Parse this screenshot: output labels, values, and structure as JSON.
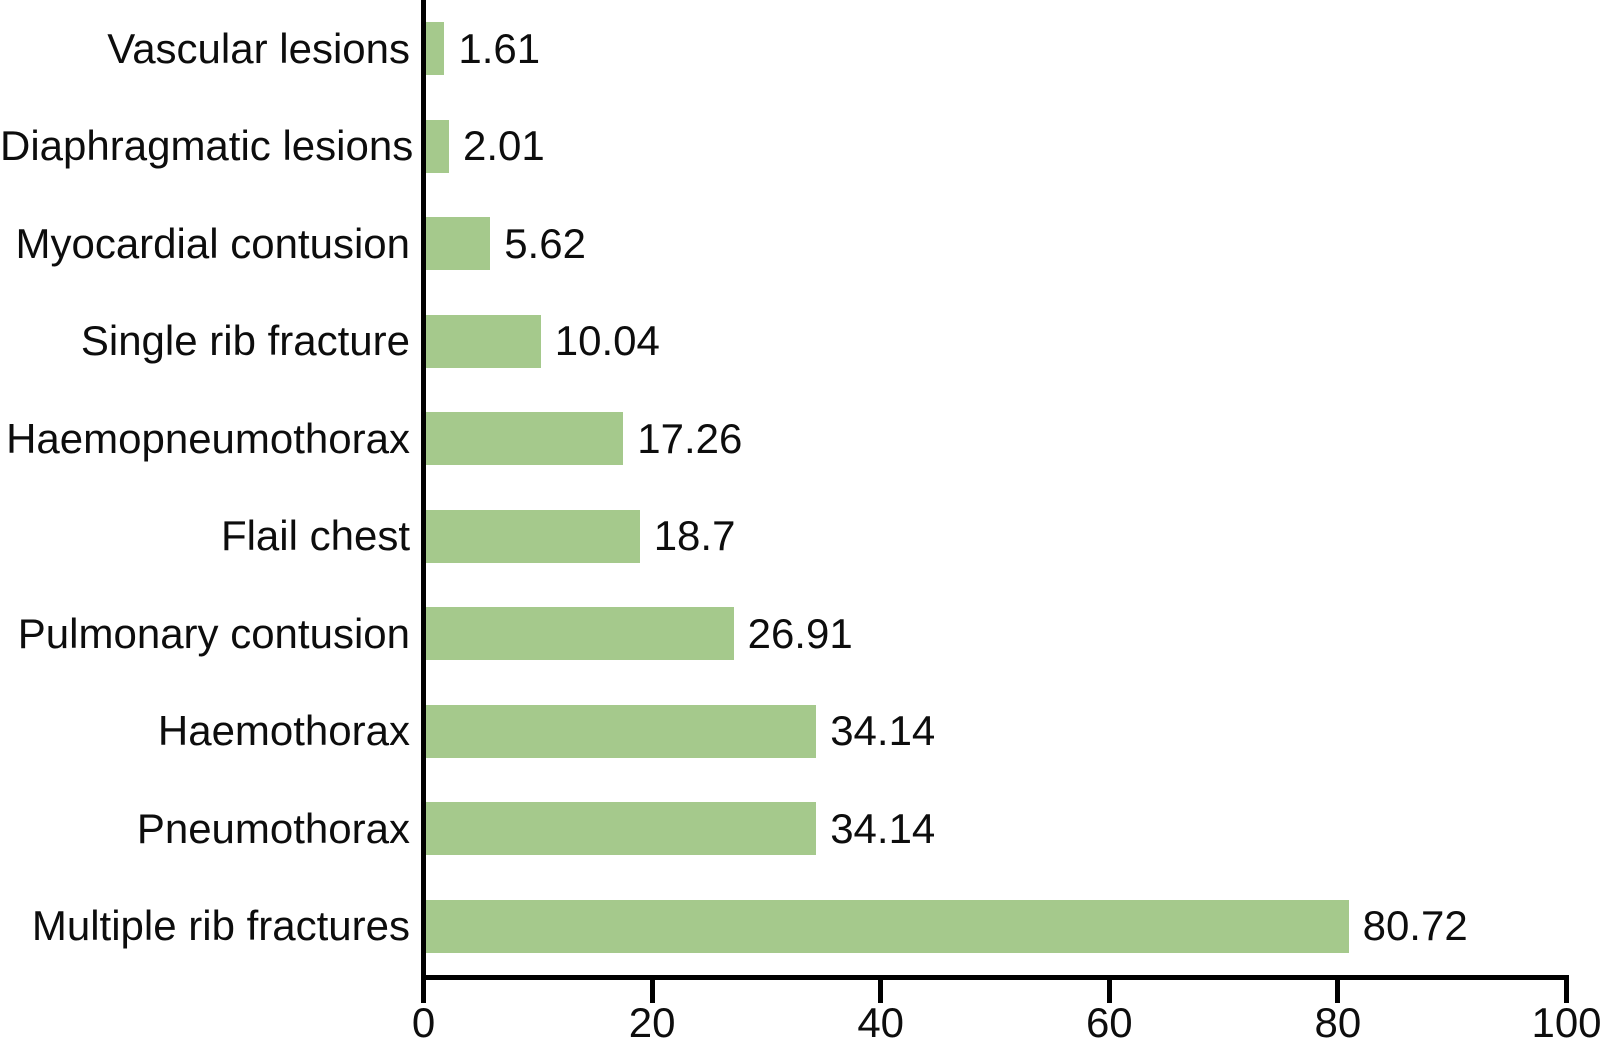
{
  "chart_data": {
    "type": "bar",
    "orientation": "horizontal",
    "title": "",
    "xlabel": "",
    "ylabel": "",
    "categories": [
      "Vascular lesions",
      "Diaphragmatic lesions",
      "Myocardial contusion",
      "Single rib fracture",
      "Haemopneumothorax",
      "Flail chest",
      "Pulmonary contusion",
      "Haemothorax",
      "Pneumothorax",
      "Multiple rib fractures"
    ],
    "values": [
      1.61,
      2.01,
      5.62,
      10.04,
      17.26,
      18.7,
      26.91,
      34.14,
      34.14,
      80.72
    ],
    "value_labels": [
      "1.61",
      "2.01",
      "5.62",
      "10.04",
      "17.26",
      "18.7",
      "26.91",
      "34.14",
      "34.14",
      "80.72"
    ],
    "xlim": [
      0,
      100
    ],
    "x_ticks": [
      0,
      20,
      40,
      60,
      80,
      100
    ],
    "grid": false,
    "legend": false,
    "bar_color": "#a5c98c",
    "axis_color": "#000000",
    "text_color": "#0d0d0d"
  }
}
